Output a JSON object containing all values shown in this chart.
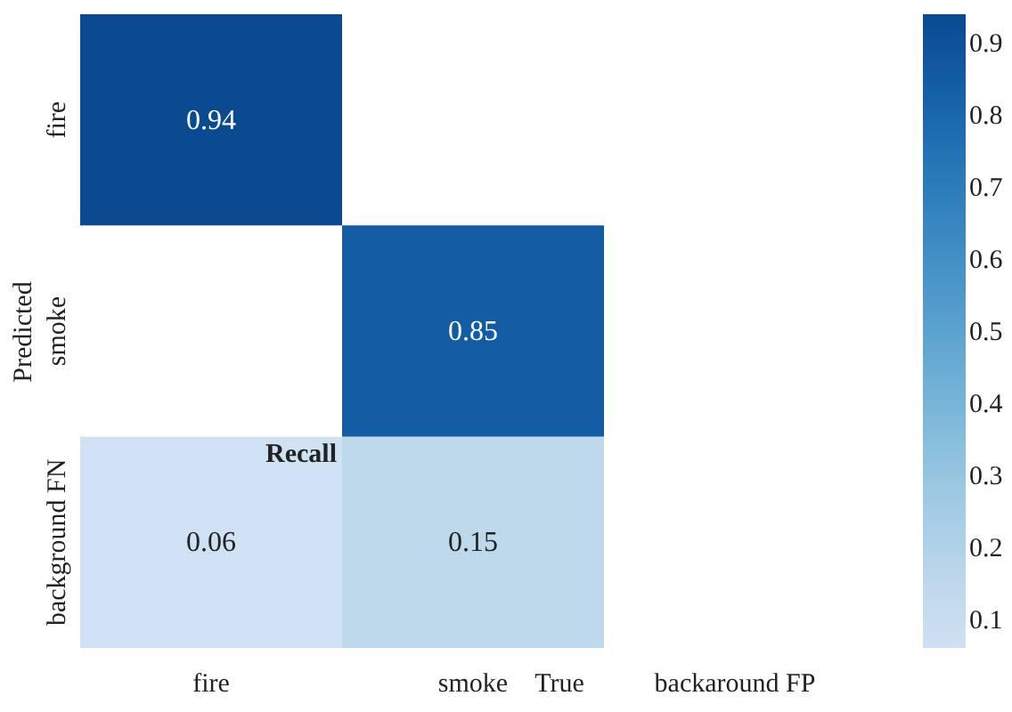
{
  "chart_data": {
    "type": "heatmap",
    "categories": [
      "fire",
      "smoke",
      "backaround FP"
    ],
    "y_categories": [
      "fire",
      "smoke",
      "background FN"
    ],
    "cells": [
      [
        0.94,
        null,
        null
      ],
      [
        null,
        0.85,
        null
      ],
      [
        0.06,
        0.15,
        null
      ]
    ],
    "xlabel": "True",
    "ylabel": "Predicted",
    "annotations": [
      "Recall"
    ],
    "data_labels": true,
    "clim": [
      0.06,
      0.94
    ],
    "cticks": [
      0.1,
      0.2,
      0.3,
      0.4,
      0.5,
      0.6,
      0.7,
      0.8,
      0.9
    ]
  }
}
